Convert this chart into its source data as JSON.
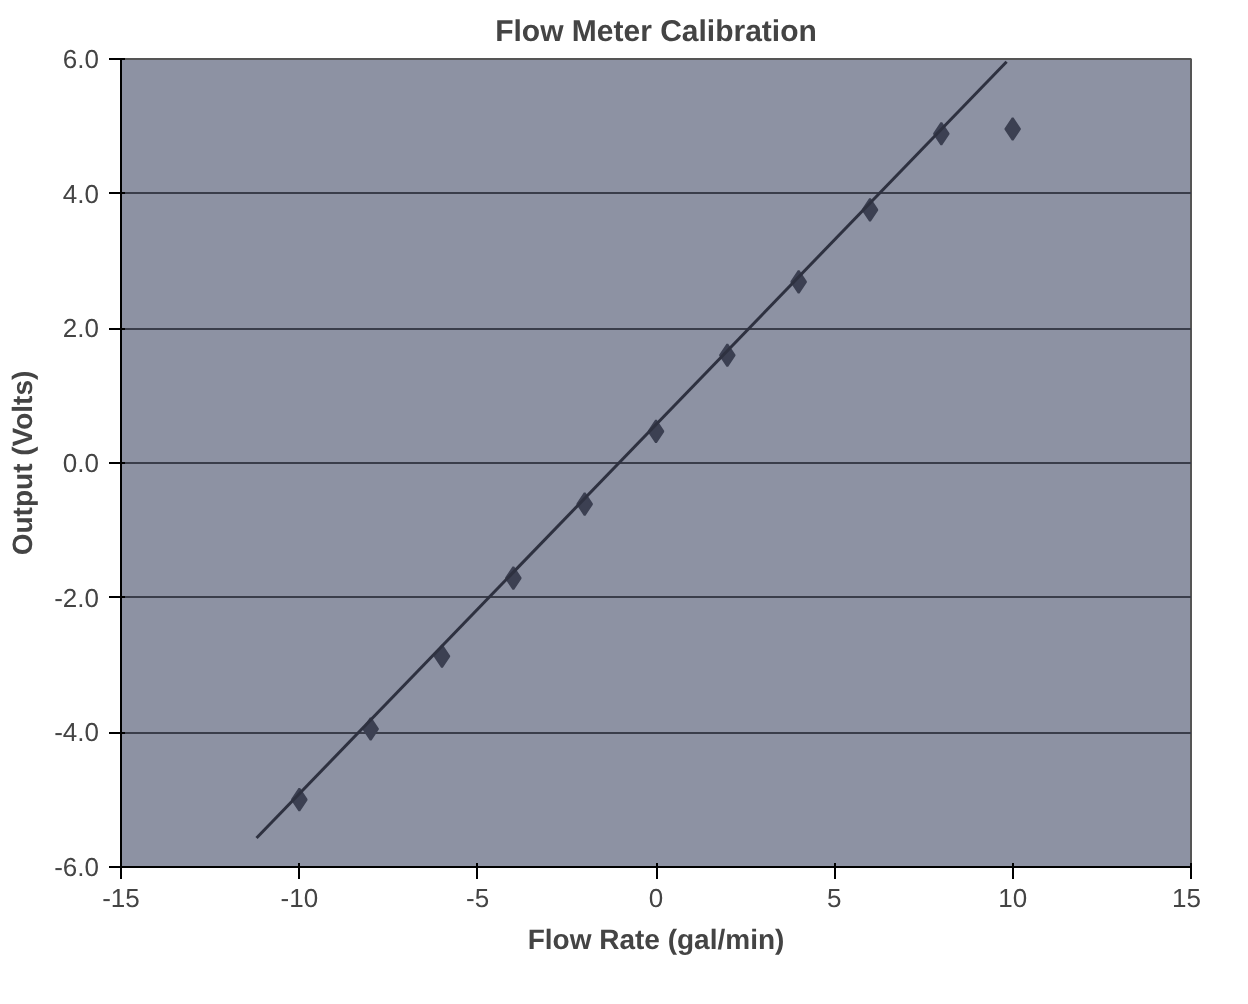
{
  "chart_data": {
    "type": "scatter",
    "title": "Flow Meter Calibration",
    "xlabel": "Flow Rate (gal/min)",
    "ylabel": "Output (Volts)",
    "x": [
      -10,
      -8,
      -6,
      -4,
      -2,
      0,
      2,
      4,
      6,
      8,
      10
    ],
    "series": [
      {
        "color": "#3c4052",
        "marker": "diamond",
        "values": [
          -5.0,
          -3.95,
          -2.87,
          -1.71,
          -0.61,
          0.47,
          1.6,
          2.69,
          3.76,
          4.89,
          4.96
        ]
      },
      {
        "type": "line",
        "marker": "none",
        "color": "#2e3140",
        "x": [
          -11.2,
          9.83
        ],
        "values": [
          -5.57,
          5.96
        ]
      }
    ],
    "xlim": [
      -15,
      15
    ],
    "xticks": [
      -15,
      -10,
      -5,
      0,
      5,
      10,
      15
    ],
    "ylim": [
      -6,
      6
    ],
    "yticks": [
      {
        "value": -6,
        "label": "-6.0"
      },
      {
        "value": -4,
        "label": "-4.0"
      },
      {
        "value": -2,
        "label": "-2.0"
      },
      {
        "value": 0,
        "label": "0.0"
      },
      {
        "value": 2,
        "label": "2.0"
      },
      {
        "value": 4,
        "label": "4.0"
      },
      {
        "value": 6,
        "label": "6.0"
      }
    ],
    "grid": "y",
    "line_style": "solid"
  }
}
